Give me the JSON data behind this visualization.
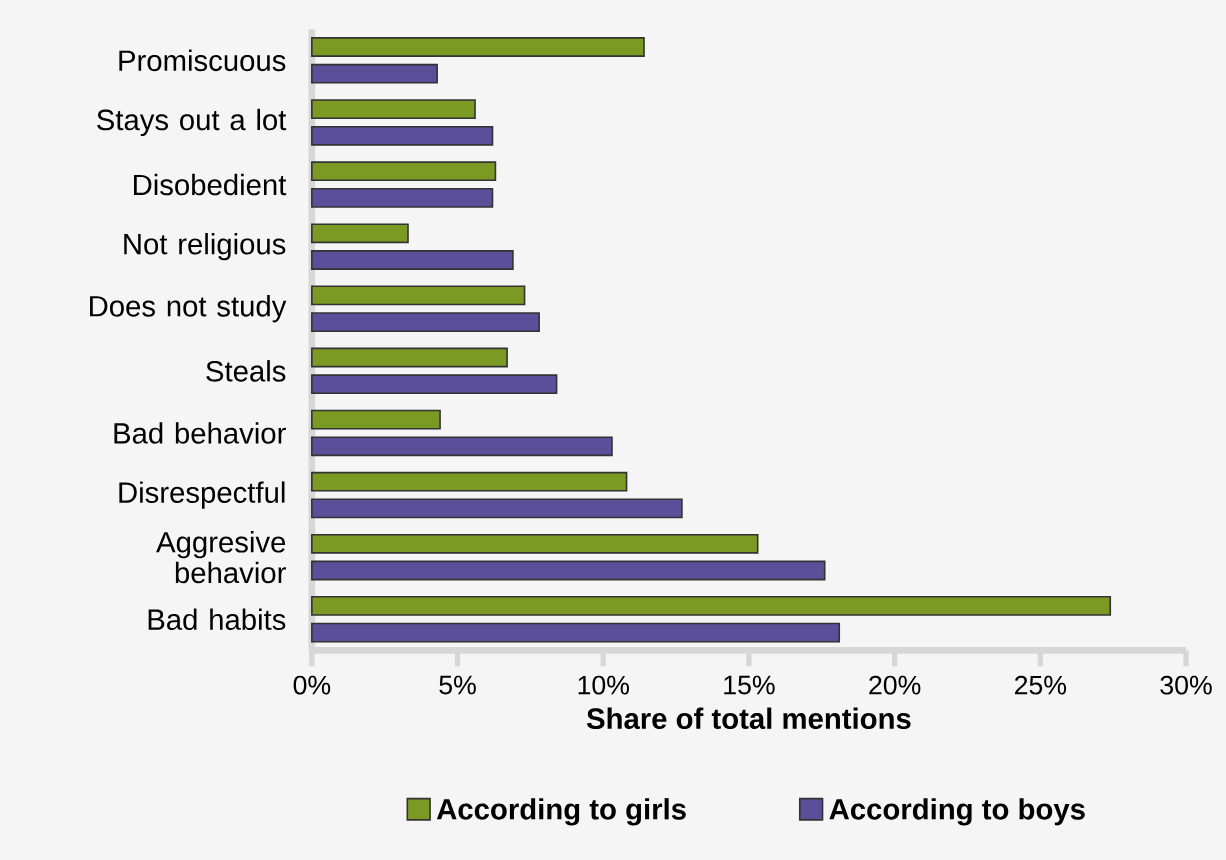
{
  "chart_data": {
    "type": "bar",
    "orientation": "horizontal",
    "xlabel": "Share of total mentions",
    "categories": [
      "Promiscuous",
      "Stays out a lot",
      "Disobedient",
      "Not religious",
      "Does not study",
      "Steals",
      "Bad behavior",
      "Disrespectful",
      "Aggresive behavior",
      "Bad habits"
    ],
    "series": [
      {
        "name": "According to girls",
        "color": "#7a9a23",
        "values": [
          11.4,
          5.6,
          6.3,
          3.3,
          7.3,
          6.7,
          4.4,
          10.8,
          15.3,
          27.4
        ]
      },
      {
        "name": "According to boys",
        "color": "#5b4f9a",
        "values": [
          4.3,
          6.2,
          6.2,
          6.9,
          7.8,
          8.4,
          10.3,
          12.7,
          17.6,
          18.1
        ]
      }
    ],
    "xlim": [
      0,
      30
    ],
    "xticks": [
      {
        "value": 0,
        "label": "0%"
      },
      {
        "value": 5,
        "label": "5%"
      },
      {
        "value": 10,
        "label": "10%"
      },
      {
        "value": 15,
        "label": "15%"
      },
      {
        "value": 20,
        "label": "20%"
      },
      {
        "value": 25,
        "label": "25%"
      },
      {
        "value": 30,
        "label": "30%"
      }
    ],
    "grid": false,
    "legend": "bottom"
  }
}
